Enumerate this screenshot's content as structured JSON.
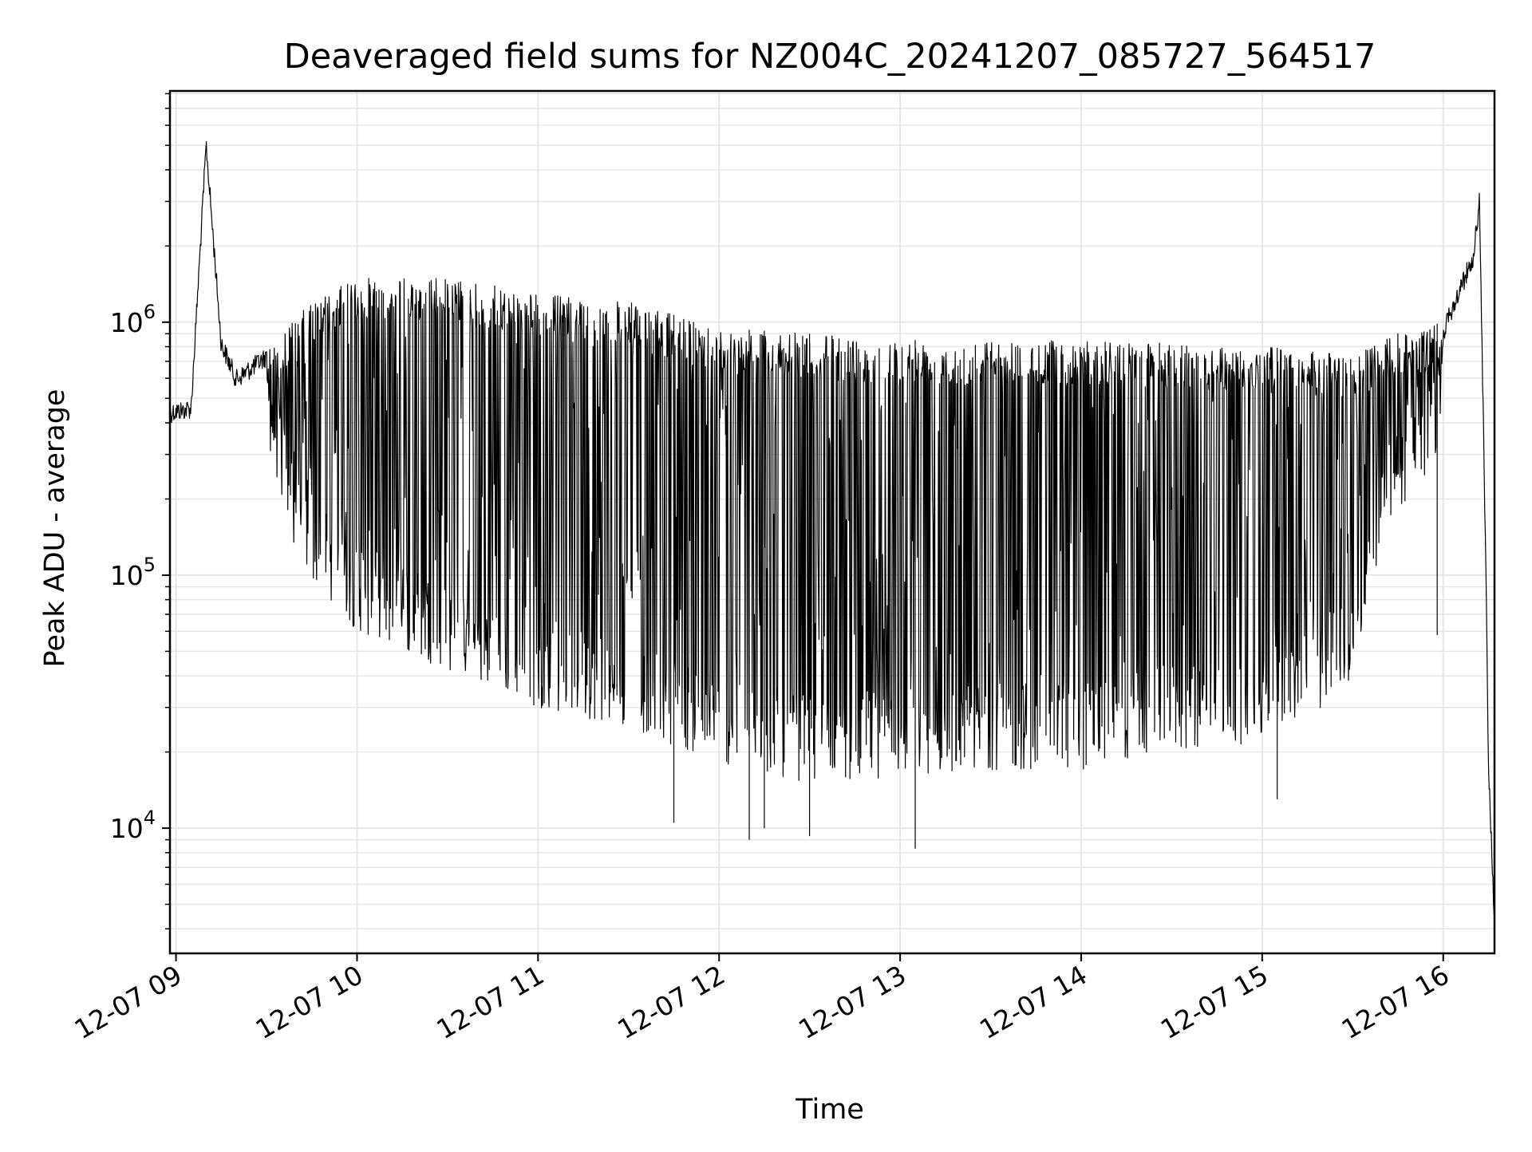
{
  "chart_data": {
    "type": "line",
    "title": "Deaveraged field sums for NZ004C_20241207_085727_564517",
    "xlabel": "Time",
    "ylabel": "Peak ADU - average",
    "y_scale": "log",
    "y_major_ticks": [
      {
        "value": 10000,
        "base": "10",
        "exp": "4"
      },
      {
        "value": 100000,
        "base": "10",
        "exp": "5"
      },
      {
        "value": 1000000,
        "base": "10",
        "exp": "6"
      }
    ],
    "ylim": [
      3200,
      8200000
    ],
    "xlim": [
      "2024-12-07 08:58",
      "2024-12-07 16:17"
    ],
    "x_tick_labels": [
      {
        "time": "2024-12-07 09:00",
        "label": "12-07 09"
      },
      {
        "time": "2024-12-07 10:00",
        "label": "12-07 10"
      },
      {
        "time": "2024-12-07 11:00",
        "label": "12-07 11"
      },
      {
        "time": "2024-12-07 12:00",
        "label": "12-07 12"
      },
      {
        "time": "2024-12-07 13:00",
        "label": "12-07 13"
      },
      {
        "time": "2024-12-07 14:00",
        "label": "12-07 14"
      },
      {
        "time": "2024-12-07 15:00",
        "label": "12-07 15"
      },
      {
        "time": "2024-12-07 16:00",
        "label": "12-07 16"
      }
    ],
    "grid": true,
    "line_color": "#000000",
    "grid_color": "#e6e6e6",
    "series": [
      {
        "points": [
          [
            "2024-12-07 08:58",
            480000
          ],
          [
            "2024-12-07 09:05",
            500000
          ],
          [
            "2024-12-07 09:10",
            5500000
          ],
          [
            "2024-12-07 09:15",
            900000
          ],
          [
            "2024-12-07 09:20",
            650000
          ],
          [
            "2024-12-07 09:30",
            800000
          ],
          [
            "2024-12-07 09:45",
            1200000
          ],
          [
            "2024-12-07 10:00",
            1500000
          ],
          [
            "2024-12-07 10:30",
            1500000
          ],
          [
            "2024-12-07 11:00",
            1300000
          ],
          [
            "2024-12-07 11:30",
            1200000
          ],
          [
            "2024-12-07 12:00",
            950000
          ],
          [
            "2024-12-07 13:00",
            850000
          ],
          [
            "2024-12-07 14:00",
            850000
          ],
          [
            "2024-12-07 15:00",
            800000
          ],
          [
            "2024-12-07 15:30",
            750000
          ],
          [
            "2024-12-07 15:45",
            900000
          ],
          [
            "2024-12-07 16:00",
            1000000
          ],
          [
            "2024-12-07 16:10",
            2000000
          ],
          [
            "2024-12-07 16:12",
            3300000
          ],
          [
            "2024-12-07 16:14",
            150000
          ],
          [
            "2024-12-07 16:15",
            20000
          ],
          [
            "2024-12-07 16:17",
            4500
          ]
        ],
        "lower_envelope": [
          [
            "2024-12-07 09:30",
            350000
          ],
          [
            "2024-12-07 09:40",
            110000
          ],
          [
            "2024-12-07 10:00",
            60000
          ],
          [
            "2024-12-07 10:30",
            42000
          ],
          [
            "2024-12-07 11:00",
            30000
          ],
          [
            "2024-12-07 11:30",
            25000
          ],
          [
            "2024-12-07 12:00",
            18000
          ],
          [
            "2024-12-07 12:30",
            15000
          ],
          [
            "2024-12-07 13:00",
            16000
          ],
          [
            "2024-12-07 13:30",
            17000
          ],
          [
            "2024-12-07 14:00",
            17000
          ],
          [
            "2024-12-07 14:30",
            20000
          ],
          [
            "2024-12-07 15:00",
            22000
          ],
          [
            "2024-12-07 15:30",
            35000
          ],
          [
            "2024-12-07 15:40",
            150000
          ],
          [
            "2024-12-07 16:00",
            300000
          ]
        ],
        "extreme_dips": [
          [
            "2024-12-07 11:45",
            10500
          ],
          [
            "2024-12-07 12:10",
            9000
          ],
          [
            "2024-12-07 12:15",
            10000
          ],
          [
            "2024-12-07 12:30",
            9300
          ],
          [
            "2024-12-07 13:05",
            8300
          ],
          [
            "2024-12-07 15:05",
            13000
          ],
          [
            "2024-12-07 15:58",
            58000
          ]
        ]
      }
    ]
  }
}
